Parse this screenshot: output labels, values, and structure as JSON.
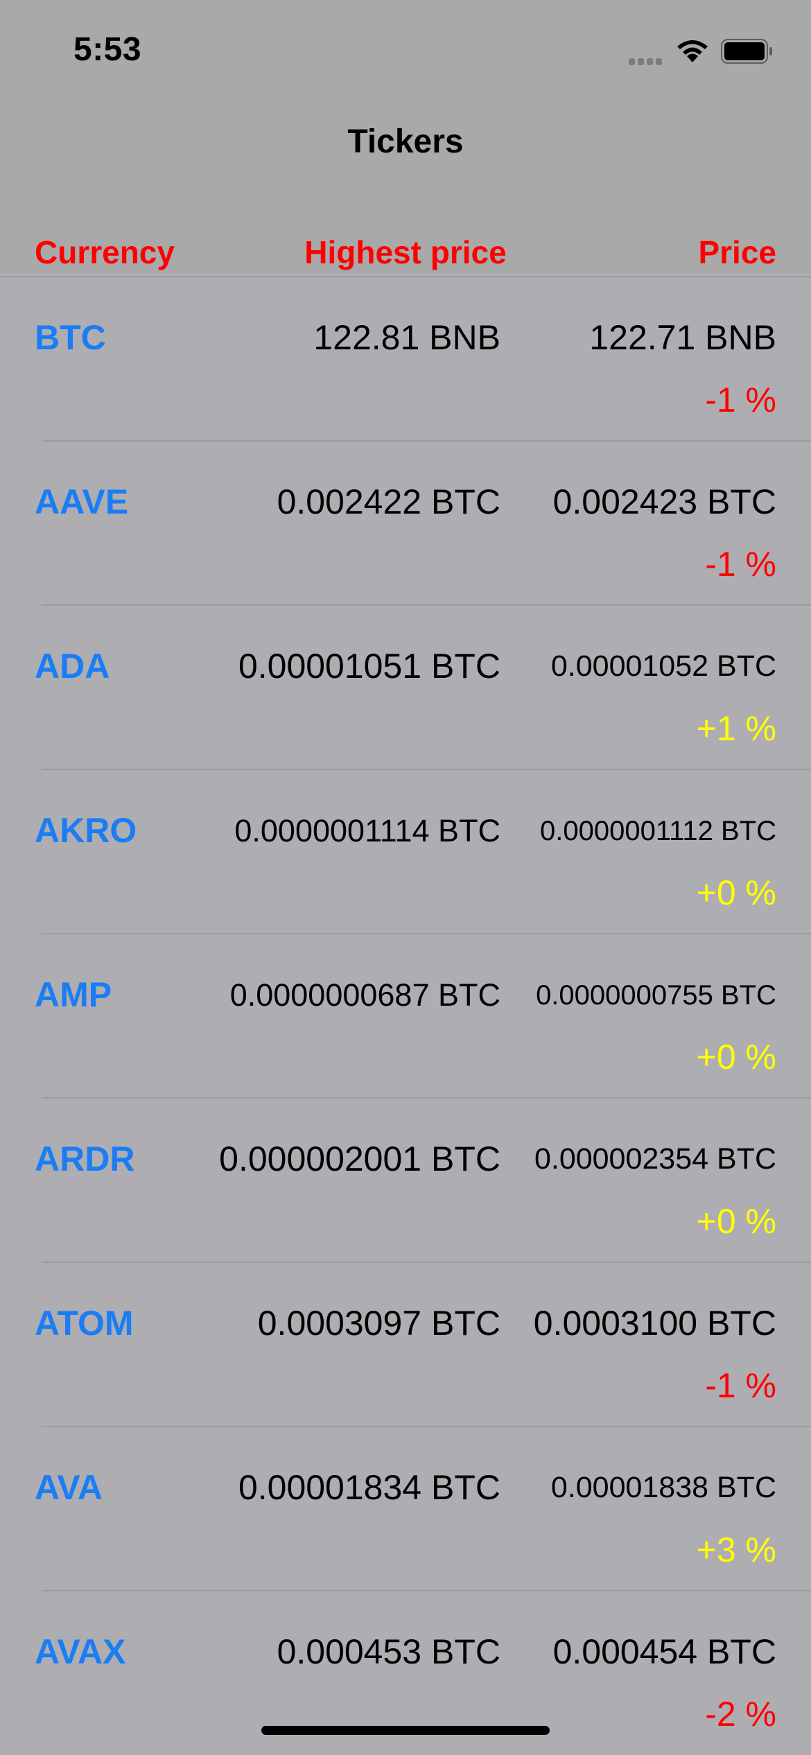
{
  "status_bar": {
    "time": "5:53"
  },
  "nav": {
    "title": "Tickers"
  },
  "columns": {
    "currency": "Currency",
    "highest_price": "Highest price",
    "price": "Price"
  },
  "colors": {
    "header_red": "#ff0000",
    "currency_blue": "#1a7df4",
    "change_down": "#ff0000",
    "change_up": "#ffff00",
    "background": "#aeadb2"
  },
  "tickers": [
    {
      "currency": "BTC",
      "highest": "122.81 BNB",
      "price": "122.71 BNB",
      "change": "-1 %",
      "direction": "down"
    },
    {
      "currency": "AAVE",
      "highest": "0.002422 BTC",
      "price": "0.002423 BTC",
      "change": "-1 %",
      "direction": "down"
    },
    {
      "currency": "ADA",
      "highest": "0.00001051 BTC",
      "price": "0.00001052 BTC",
      "change": "+1 %",
      "direction": "up"
    },
    {
      "currency": "AKRO",
      "highest": "0.0000001114 BTC",
      "price": "0.0000001112 BTC",
      "change": "+0 %",
      "direction": "up"
    },
    {
      "currency": "AMP",
      "highest": "0.0000000687 BTC",
      "price": "0.0000000755 BTC",
      "change": "+0 %",
      "direction": "up"
    },
    {
      "currency": "ARDR",
      "highest": "0.000002001 BTC",
      "price": "0.000002354 BTC",
      "change": "+0 %",
      "direction": "up"
    },
    {
      "currency": "ATOM",
      "highest": "0.0003097 BTC",
      "price": "0.0003100 BTC",
      "change": "-1 %",
      "direction": "down"
    },
    {
      "currency": "AVA",
      "highest": "0.00001834 BTC",
      "price": "0.00001838 BTC",
      "change": "+3 %",
      "direction": "up"
    },
    {
      "currency": "AVAX",
      "highest": "0.000453 BTC",
      "price": "0.000454 BTC",
      "change": "-2 %",
      "direction": "down"
    }
  ]
}
